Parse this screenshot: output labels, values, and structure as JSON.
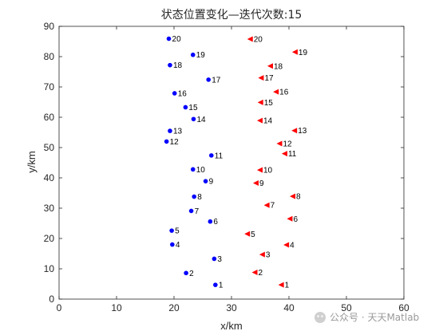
{
  "chart_data": {
    "type": "scatter",
    "title": "状态位置变化—迭代次数:15",
    "xlabel": "x/km",
    "ylabel": "y/km",
    "xlim": [
      0,
      60
    ],
    "ylim": [
      0,
      90
    ],
    "xticks": [
      0,
      10,
      20,
      30,
      40,
      50,
      60
    ],
    "yticks": [
      0,
      10,
      20,
      30,
      40,
      50,
      60,
      70,
      80,
      90
    ],
    "grid": false,
    "legend": "none",
    "series": [
      {
        "marker": "circle",
        "color": "#0000ff",
        "points": [
          {
            "label": "1",
            "x": 27.2,
            "y": 4.7
          },
          {
            "label": "2",
            "x": 22.1,
            "y": 8.6
          },
          {
            "label": "3",
            "x": 27.0,
            "y": 13.3
          },
          {
            "label": "4",
            "x": 19.7,
            "y": 18.0
          },
          {
            "label": "5",
            "x": 19.6,
            "y": 22.6
          },
          {
            "label": "6",
            "x": 26.3,
            "y": 25.6
          },
          {
            "label": "7",
            "x": 23.0,
            "y": 29.1
          },
          {
            "label": "8",
            "x": 23.5,
            "y": 33.8
          },
          {
            "label": "9",
            "x": 25.5,
            "y": 38.9
          },
          {
            "label": "10",
            "x": 23.3,
            "y": 42.8
          },
          {
            "label": "11",
            "x": 26.5,
            "y": 47.4
          },
          {
            "label": "12",
            "x": 18.7,
            "y": 52.0
          },
          {
            "label": "13",
            "x": 19.3,
            "y": 55.5
          },
          {
            "label": "14",
            "x": 23.4,
            "y": 59.4
          },
          {
            "label": "15",
            "x": 22.0,
            "y": 63.3
          },
          {
            "label": "16",
            "x": 20.1,
            "y": 67.9
          },
          {
            "label": "17",
            "x": 26.0,
            "y": 72.4
          },
          {
            "label": "18",
            "x": 19.3,
            "y": 77.2
          },
          {
            "label": "19",
            "x": 23.3,
            "y": 80.6
          },
          {
            "label": "20",
            "x": 19.1,
            "y": 85.9
          }
        ]
      },
      {
        "marker": "triangle-left",
        "color": "#ff0000",
        "points": [
          {
            "label": "1",
            "x": 38.7,
            "y": 4.7
          },
          {
            "label": "2",
            "x": 34.1,
            "y": 8.8
          },
          {
            "label": "3",
            "x": 35.4,
            "y": 14.7
          },
          {
            "label": "4",
            "x": 39.6,
            "y": 17.9
          },
          {
            "label": "5",
            "x": 32.8,
            "y": 21.5
          },
          {
            "label": "6",
            "x": 40.2,
            "y": 26.5
          },
          {
            "label": "7",
            "x": 36.2,
            "y": 31.0
          },
          {
            "label": "8",
            "x": 40.7,
            "y": 33.9
          },
          {
            "label": "9",
            "x": 34.3,
            "y": 38.3
          },
          {
            "label": "10",
            "x": 35.0,
            "y": 42.6
          },
          {
            "label": "11",
            "x": 39.3,
            "y": 48.0
          },
          {
            "label": "12",
            "x": 38.4,
            "y": 51.3
          },
          {
            "label": "13",
            "x": 41.0,
            "y": 55.6
          },
          {
            "label": "14",
            "x": 35.0,
            "y": 58.9
          },
          {
            "label": "15",
            "x": 35.1,
            "y": 64.9
          },
          {
            "label": "16",
            "x": 37.8,
            "y": 68.4
          },
          {
            "label": "17",
            "x": 35.2,
            "y": 73.0
          },
          {
            "label": "18",
            "x": 36.8,
            "y": 76.9
          },
          {
            "label": "19",
            "x": 41.1,
            "y": 81.5
          },
          {
            "label": "20",
            "x": 33.3,
            "y": 85.8
          }
        ]
      }
    ]
  },
  "watermark": {
    "text": "公众号 · 天天Matlab",
    "icon": "wechat-icon"
  }
}
